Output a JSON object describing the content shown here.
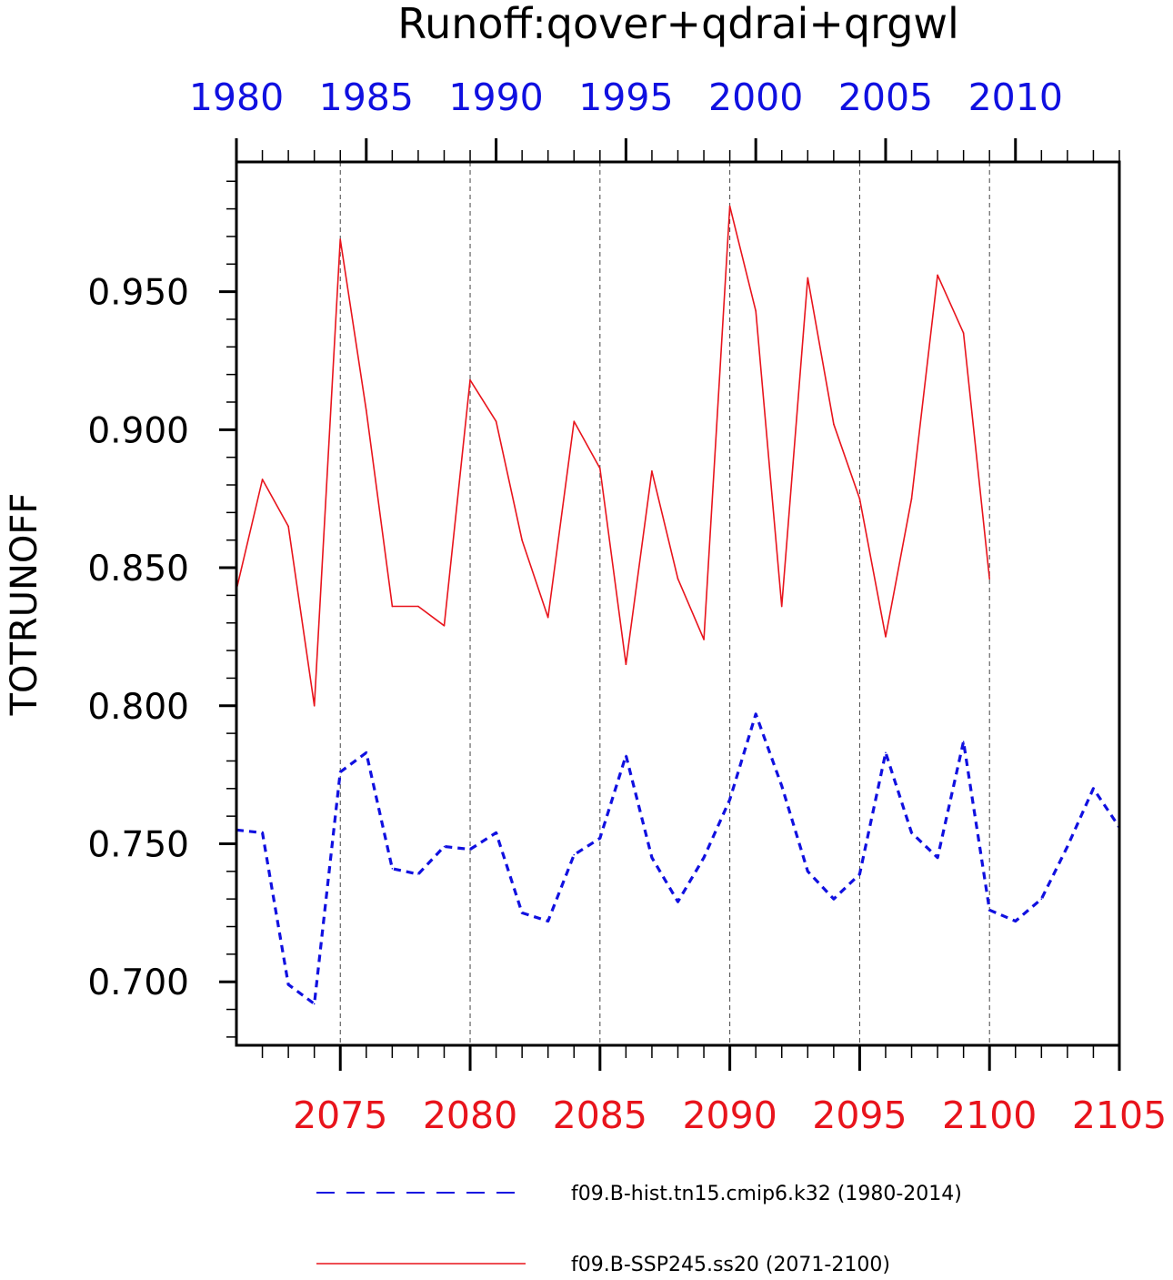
{
  "chart_data": {
    "type": "line",
    "title": "Runoff:qover+qdrai+qrgwl",
    "ylabel": "TOTRUNOFF",
    "ylim": [
      0.677,
      0.997
    ],
    "yticks": [
      "0.700",
      "0.750",
      "0.800",
      "0.850",
      "0.900",
      "0.950"
    ],
    "top_axis": {
      "color": "#1010e0",
      "range": [
        1980,
        2014
      ],
      "tick_labels": [
        "1980",
        "1985",
        "1990",
        "1995",
        "2000",
        "2005",
        "2010"
      ]
    },
    "bottom_axis": {
      "color": "#e8141c",
      "range": [
        2071,
        2105
      ],
      "tick_labels": [
        "2075",
        "2080",
        "2085",
        "2090",
        "2095",
        "2100",
        "2105"
      ]
    },
    "grid": "dashed vertical lines at bottom-axis major ticks",
    "series": [
      {
        "name": "f09.B-hist.tn15.cmip6.k32 (1980-2014)",
        "color": "#1010e0",
        "style": "dashed",
        "x": [
          1980,
          1981,
          1982,
          1983,
          1984,
          1985,
          1986,
          1987,
          1988,
          1989,
          1990,
          1991,
          1992,
          1993,
          1994,
          1995,
          1996,
          1997,
          1998,
          1999,
          2000,
          2001,
          2002,
          2003,
          2004,
          2005,
          2006,
          2007,
          2008,
          2009,
          2010,
          2011,
          2012,
          2013,
          2014
        ],
        "values": [
          0.755,
          0.754,
          0.699,
          0.692,
          0.776,
          0.783,
          0.741,
          0.739,
          0.749,
          0.748,
          0.754,
          0.725,
          0.722,
          0.746,
          0.752,
          0.782,
          0.745,
          0.729,
          0.745,
          0.766,
          0.797,
          0.771,
          0.74,
          0.73,
          0.739,
          0.783,
          0.754,
          0.745,
          0.787,
          0.726,
          0.722,
          0.73,
          0.749,
          0.77,
          0.756
        ]
      },
      {
        "name": "f09.B-SSP245.ss20 (2071-2100)",
        "color": "#e8141c",
        "style": "solid",
        "x": [
          2071,
          2072,
          2073,
          2074,
          2075,
          2076,
          2077,
          2078,
          2079,
          2080,
          2081,
          2082,
          2083,
          2084,
          2085,
          2086,
          2087,
          2088,
          2089,
          2090,
          2091,
          2092,
          2093,
          2094,
          2095,
          2096,
          2097,
          2098,
          2099,
          2100
        ],
        "values": [
          0.842,
          0.882,
          0.865,
          0.8,
          0.969,
          0.907,
          0.836,
          0.836,
          0.829,
          0.918,
          0.903,
          0.86,
          0.832,
          0.903,
          0.886,
          0.815,
          0.885,
          0.846,
          0.824,
          0.981,
          0.943,
          0.836,
          0.955,
          0.902,
          0.875,
          0.825,
          0.875,
          0.956,
          0.935,
          0.846
        ]
      }
    ],
    "legend": {
      "placement": "bottom",
      "entries": [
        "f09.B-hist.tn15.cmip6.k32 (1980-2014)",
        "f09.B-SSP245.ss20 (2071-2100)"
      ]
    }
  }
}
